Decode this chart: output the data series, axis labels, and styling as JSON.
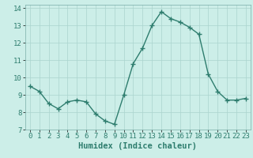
{
  "x": [
    0,
    1,
    2,
    3,
    4,
    5,
    6,
    7,
    8,
    9,
    10,
    11,
    12,
    13,
    14,
    15,
    16,
    17,
    18,
    19,
    20,
    21,
    22,
    23
  ],
  "y": [
    9.5,
    9.2,
    8.5,
    8.2,
    8.6,
    8.7,
    8.6,
    7.9,
    7.5,
    7.3,
    9.0,
    10.8,
    11.7,
    13.0,
    13.8,
    13.4,
    13.2,
    12.9,
    12.5,
    10.2,
    9.2,
    8.7,
    8.7,
    8.8
  ],
  "xlim": [
    -0.5,
    23.5
  ],
  "ylim": [
    7,
    14.2
  ],
  "xticks": [
    0,
    1,
    2,
    3,
    4,
    5,
    6,
    7,
    8,
    9,
    10,
    11,
    12,
    13,
    14,
    15,
    16,
    17,
    18,
    19,
    20,
    21,
    22,
    23
  ],
  "yticks": [
    7,
    8,
    9,
    10,
    11,
    12,
    13,
    14
  ],
  "xlabel": "Humidex (Indice chaleur)",
  "line_color": "#2e7d6e",
  "bg_color": "#cceee8",
  "grid_color": "#aad4ce",
  "marker": "+",
  "linewidth": 1.0,
  "markersize": 4,
  "markeredgewidth": 1.0,
  "xlabel_fontsize": 7.5,
  "tick_fontsize": 6.5
}
